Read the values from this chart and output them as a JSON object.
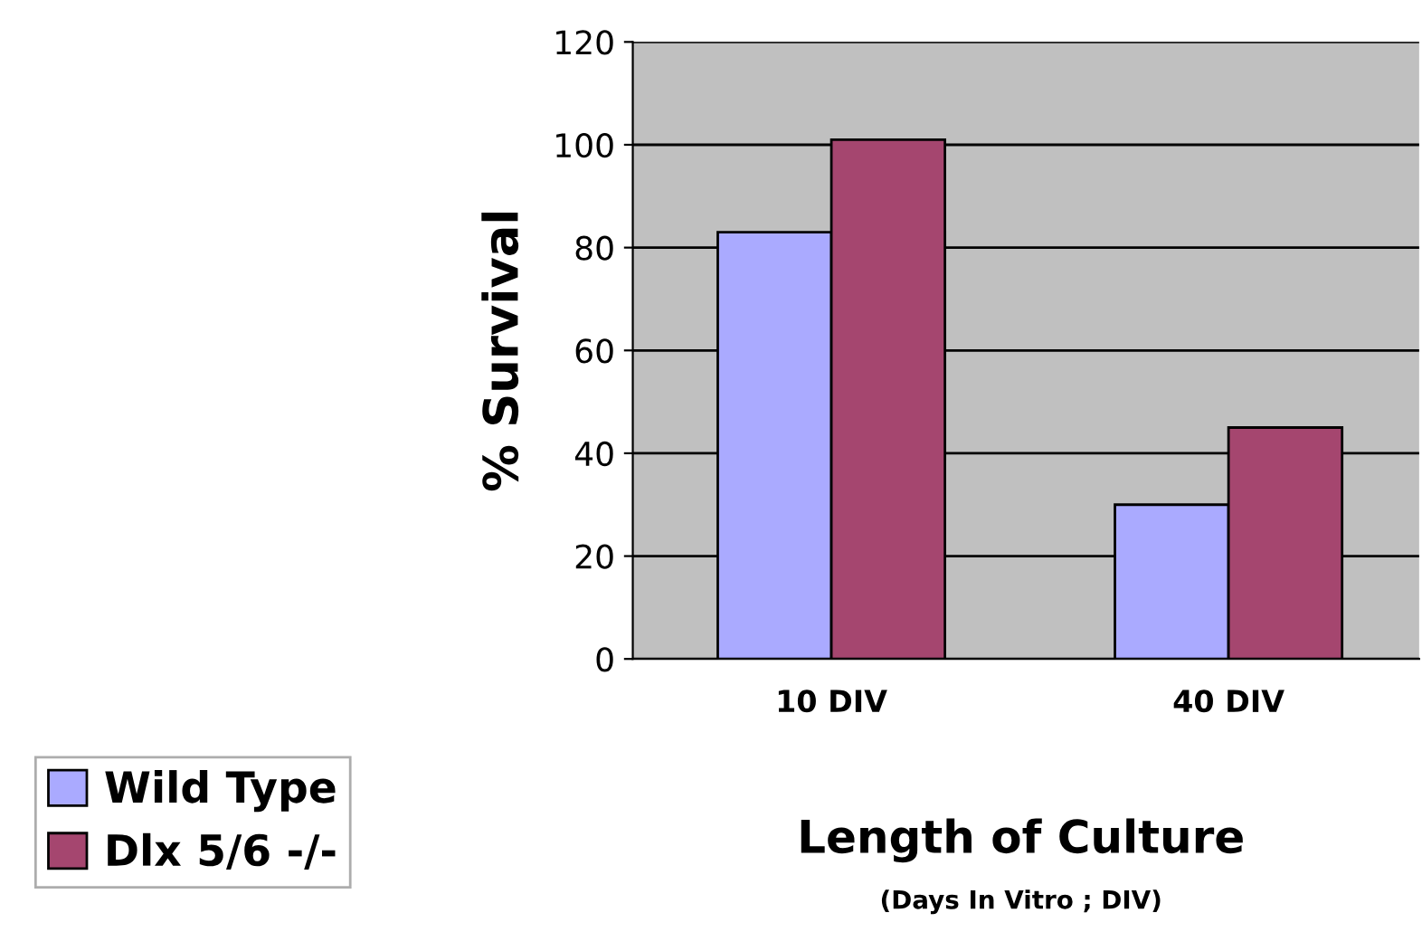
{
  "chart_data": {
    "type": "bar",
    "ylabel": "% Survival",
    "xlabel": "Length of Culture",
    "annotations": [
      "(Days In Vitro ; DIV)"
    ],
    "categories": [
      "10 DIV",
      "40 DIV"
    ],
    "series": [
      {
        "name": "Wild Type",
        "color": "#aaaaff",
        "values": [
          83,
          30
        ]
      },
      {
        "name": "Dlx 5/6 -/-",
        "color": "#a5466f",
        "values": [
          101,
          45
        ]
      }
    ],
    "ylim": [
      0,
      120
    ],
    "yticks": [
      0,
      20,
      40,
      60,
      80,
      100,
      120
    ],
    "grid": "y",
    "legend": "bottom left"
  }
}
